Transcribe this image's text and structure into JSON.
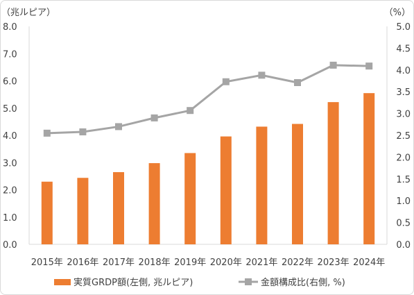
{
  "chart_data": {
    "type": "bar+line",
    "left_unit_label": "（兆ルピア）",
    "right_unit_label": "（%）",
    "categories": [
      "2015年",
      "2016年",
      "2017年",
      "2018年",
      "2019年",
      "2020年",
      "2021年",
      "2022年",
      "2023年",
      "2024年"
    ],
    "left_axis": {
      "min": 0,
      "max": 8,
      "ticks": [
        "0.0",
        "1.0",
        "2.0",
        "3.0",
        "4.0",
        "5.0",
        "6.0",
        "7.0",
        "8.0"
      ]
    },
    "right_axis": {
      "min": 0,
      "max": 5,
      "ticks": [
        "0.0",
        "0.5",
        "1.0",
        "1.5",
        "2.0",
        "2.5",
        "3.0",
        "3.5",
        "4.0",
        "4.5",
        "5.0"
      ]
    },
    "series": [
      {
        "name": "実質GRDP額(左側, 兆ルピア)",
        "type": "bar",
        "axis": "left",
        "color": "#ED7D31",
        "values": [
          2.3,
          2.44,
          2.65,
          2.98,
          3.35,
          3.96,
          4.32,
          4.42,
          5.22,
          5.55
        ]
      },
      {
        "name": "金額構成比(右側, %)",
        "type": "line",
        "axis": "right",
        "color": "#A5A5A5",
        "values": [
          2.55,
          2.58,
          2.7,
          2.9,
          3.07,
          3.73,
          3.88,
          3.71,
          4.11,
          4.09
        ]
      }
    ],
    "grid": false,
    "legend": "bottom"
  }
}
